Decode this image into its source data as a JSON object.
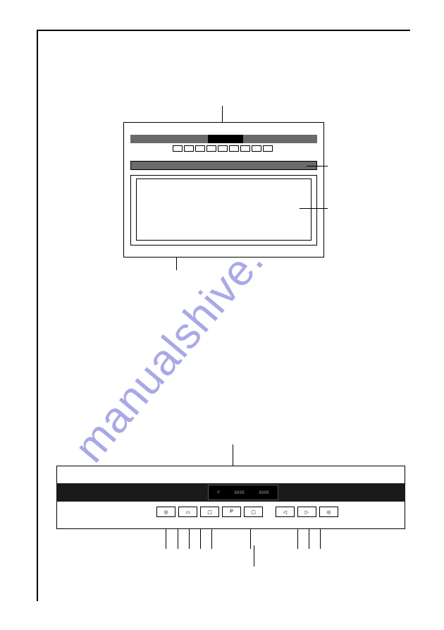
{
  "watermark": "manualshive.com",
  "oven": {
    "button_count": 9,
    "colors": {
      "strip": "#6a6a6a",
      "outline": "#000000",
      "background": "#ffffff"
    }
  },
  "control_panel": {
    "display_segments": [
      "P",
      "8888",
      "8888"
    ],
    "buttons": [
      {
        "symbol": "◎"
      },
      {
        "symbol": "▭"
      },
      {
        "symbol": "▢"
      },
      {
        "symbol": "P"
      },
      {
        "symbol": "▢"
      },
      {
        "symbol": ""
      },
      {
        "symbol": "◁"
      },
      {
        "symbol": "▷"
      },
      {
        "symbol": "◎"
      }
    ],
    "colors": {
      "strip": "#1a1a1a",
      "outline": "#000000"
    }
  }
}
